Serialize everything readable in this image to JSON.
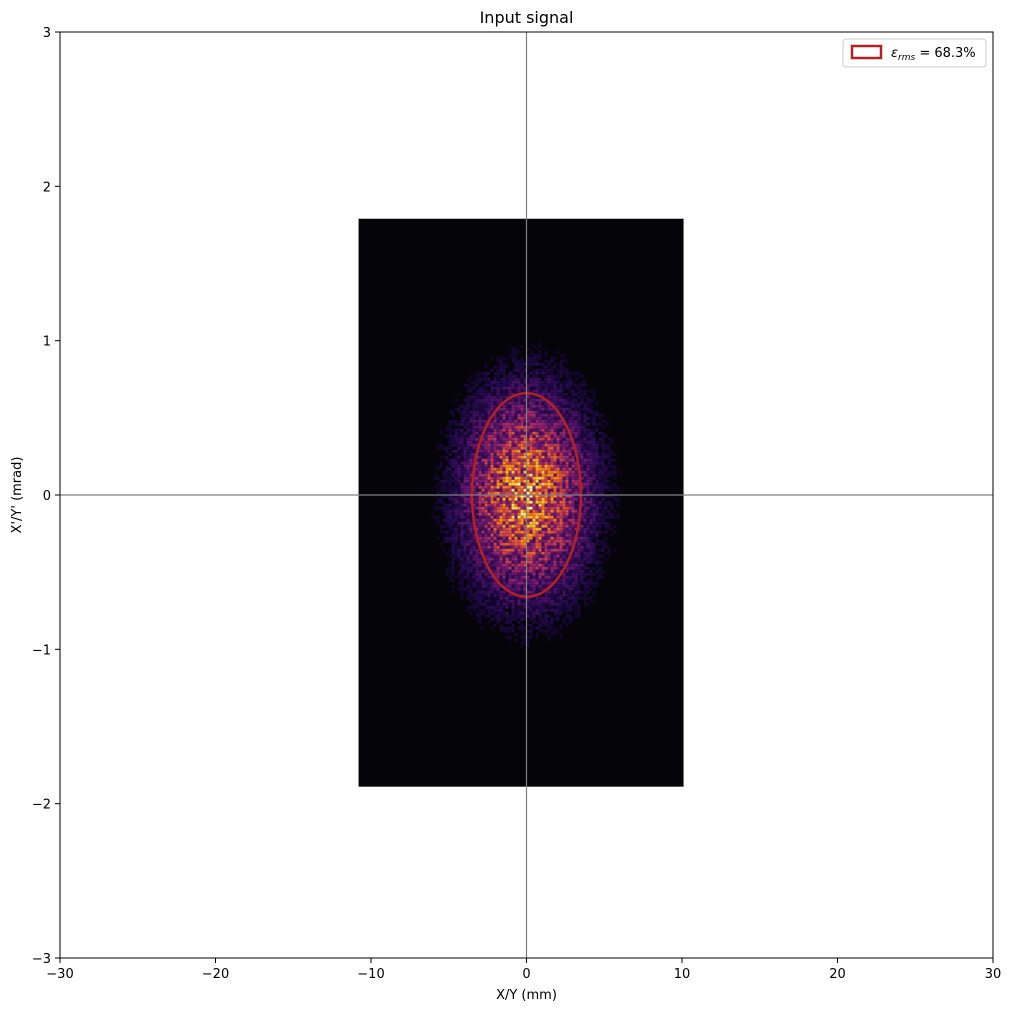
{
  "chart_data": {
    "type": "heatmap",
    "title": "Input signal",
    "xlabel": "X/Y (mm)",
    "ylabel": "X'/Y' (mrad)",
    "xlim": [
      -30,
      30
    ],
    "ylim": [
      -3,
      3
    ],
    "x_ticks": [
      -30,
      -20,
      -10,
      0,
      10,
      20,
      30
    ],
    "y_ticks": [
      -3,
      -2,
      -1,
      0,
      1,
      2,
      3
    ],
    "x_tick_labels": [
      "−30",
      "−20",
      "−10",
      "0",
      "10",
      "20",
      "30"
    ],
    "y_tick_labels": [
      "−3",
      "−2",
      "−1",
      "0",
      "1",
      "2",
      "3"
    ],
    "crosshair": {
      "x": 0,
      "y": 0,
      "color": "#808080"
    },
    "heatmap": {
      "x_extent": [
        -10.8,
        10.1
      ],
      "y_extent": [
        -1.89,
        1.79
      ],
      "colormap": "inferno",
      "background_color": "#040409",
      "center": [
        0,
        0
      ],
      "sigma_x": 2.6,
      "sigma_y": 0.42
    },
    "ellipse": {
      "center": [
        0,
        0
      ],
      "semi_axis_x": 3.5,
      "semi_axis_y": 0.66,
      "color": "#b22222"
    },
    "legend": {
      "position": "top-right",
      "symbol": "ε",
      "subscript": "rms",
      "value_text": " = 68.3%",
      "swatch_color": "#b22222"
    },
    "grid": false
  }
}
